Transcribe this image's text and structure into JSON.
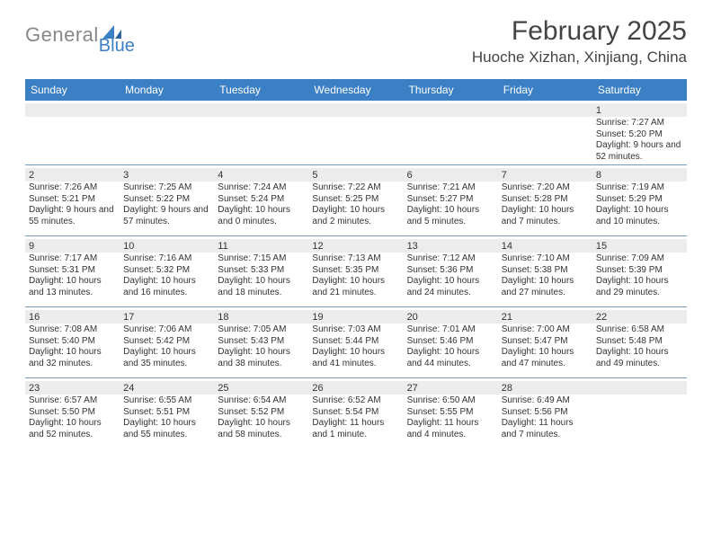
{
  "brand": {
    "name1": "General",
    "name2": "Blue"
  },
  "title": {
    "month": "February 2025",
    "location": "Huoche Xizhan, Xinjiang, China"
  },
  "colors": {
    "header_bar": "#3b7fc4",
    "row_divider": "#7a98b8",
    "daynum_band": "#ececec",
    "text": "#333333",
    "brand_gray": "#888888",
    "brand_blue": "#3b7fc4"
  },
  "day_headers": [
    "Sunday",
    "Monday",
    "Tuesday",
    "Wednesday",
    "Thursday",
    "Friday",
    "Saturday"
  ],
  "weeks": [
    [
      {},
      {},
      {},
      {},
      {},
      {},
      {
        "n": "1",
        "sr": "7:27 AM",
        "ss": "5:20 PM",
        "dl": "9 hours and 52 minutes."
      }
    ],
    [
      {
        "n": "2",
        "sr": "7:26 AM",
        "ss": "5:21 PM",
        "dl": "9 hours and 55 minutes."
      },
      {
        "n": "3",
        "sr": "7:25 AM",
        "ss": "5:22 PM",
        "dl": "9 hours and 57 minutes."
      },
      {
        "n": "4",
        "sr": "7:24 AM",
        "ss": "5:24 PM",
        "dl": "10 hours and 0 minutes."
      },
      {
        "n": "5",
        "sr": "7:22 AM",
        "ss": "5:25 PM",
        "dl": "10 hours and 2 minutes."
      },
      {
        "n": "6",
        "sr": "7:21 AM",
        "ss": "5:27 PM",
        "dl": "10 hours and 5 minutes."
      },
      {
        "n": "7",
        "sr": "7:20 AM",
        "ss": "5:28 PM",
        "dl": "10 hours and 7 minutes."
      },
      {
        "n": "8",
        "sr": "7:19 AM",
        "ss": "5:29 PM",
        "dl": "10 hours and 10 minutes."
      }
    ],
    [
      {
        "n": "9",
        "sr": "7:17 AM",
        "ss": "5:31 PM",
        "dl": "10 hours and 13 minutes."
      },
      {
        "n": "10",
        "sr": "7:16 AM",
        "ss": "5:32 PM",
        "dl": "10 hours and 16 minutes."
      },
      {
        "n": "11",
        "sr": "7:15 AM",
        "ss": "5:33 PM",
        "dl": "10 hours and 18 minutes."
      },
      {
        "n": "12",
        "sr": "7:13 AM",
        "ss": "5:35 PM",
        "dl": "10 hours and 21 minutes."
      },
      {
        "n": "13",
        "sr": "7:12 AM",
        "ss": "5:36 PM",
        "dl": "10 hours and 24 minutes."
      },
      {
        "n": "14",
        "sr": "7:10 AM",
        "ss": "5:38 PM",
        "dl": "10 hours and 27 minutes."
      },
      {
        "n": "15",
        "sr": "7:09 AM",
        "ss": "5:39 PM",
        "dl": "10 hours and 29 minutes."
      }
    ],
    [
      {
        "n": "16",
        "sr": "7:08 AM",
        "ss": "5:40 PM",
        "dl": "10 hours and 32 minutes."
      },
      {
        "n": "17",
        "sr": "7:06 AM",
        "ss": "5:42 PM",
        "dl": "10 hours and 35 minutes."
      },
      {
        "n": "18",
        "sr": "7:05 AM",
        "ss": "5:43 PM",
        "dl": "10 hours and 38 minutes."
      },
      {
        "n": "19",
        "sr": "7:03 AM",
        "ss": "5:44 PM",
        "dl": "10 hours and 41 minutes."
      },
      {
        "n": "20",
        "sr": "7:01 AM",
        "ss": "5:46 PM",
        "dl": "10 hours and 44 minutes."
      },
      {
        "n": "21",
        "sr": "7:00 AM",
        "ss": "5:47 PM",
        "dl": "10 hours and 47 minutes."
      },
      {
        "n": "22",
        "sr": "6:58 AM",
        "ss": "5:48 PM",
        "dl": "10 hours and 49 minutes."
      }
    ],
    [
      {
        "n": "23",
        "sr": "6:57 AM",
        "ss": "5:50 PM",
        "dl": "10 hours and 52 minutes."
      },
      {
        "n": "24",
        "sr": "6:55 AM",
        "ss": "5:51 PM",
        "dl": "10 hours and 55 minutes."
      },
      {
        "n": "25",
        "sr": "6:54 AM",
        "ss": "5:52 PM",
        "dl": "10 hours and 58 minutes."
      },
      {
        "n": "26",
        "sr": "6:52 AM",
        "ss": "5:54 PM",
        "dl": "11 hours and 1 minute."
      },
      {
        "n": "27",
        "sr": "6:50 AM",
        "ss": "5:55 PM",
        "dl": "11 hours and 4 minutes."
      },
      {
        "n": "28",
        "sr": "6:49 AM",
        "ss": "5:56 PM",
        "dl": "11 hours and 7 minutes."
      },
      {}
    ]
  ],
  "labels": {
    "sunrise": "Sunrise:",
    "sunset": "Sunset:",
    "daylight": "Daylight:"
  }
}
